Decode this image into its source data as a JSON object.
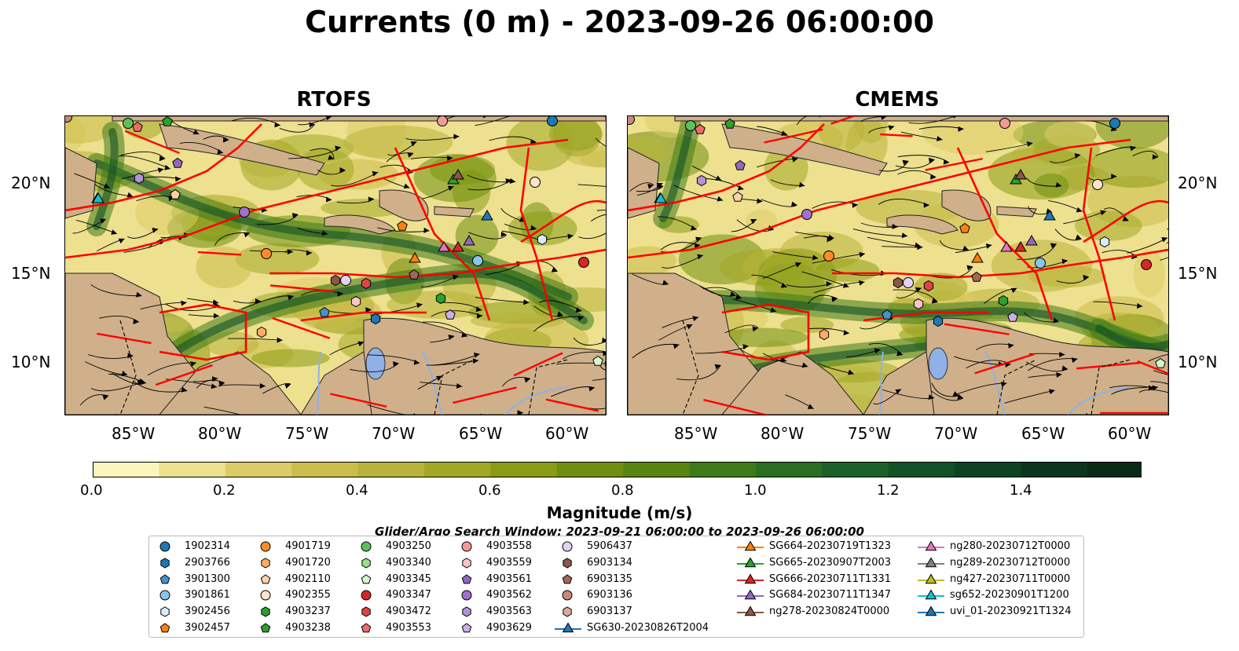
{
  "title": "Currents (0 m) - 2023-09-26 06:00:00",
  "panels": [
    {
      "title": "RTOFS"
    },
    {
      "title": "CMEMS"
    }
  ],
  "axes": {
    "lat_ticks": [
      "20°N",
      "15°N",
      "10°N"
    ],
    "lon_ticks": [
      "85°W",
      "80°W",
      "75°W",
      "70°W",
      "65°W",
      "60°W"
    ]
  },
  "colorbar": {
    "label": "Magnitude (m/s)",
    "ticks": [
      "0.0",
      "0.2",
      "0.4",
      "0.6",
      "0.8",
      "1.0",
      "1.2",
      "1.4"
    ],
    "colors": [
      "#fbf5bd",
      "#ede08f",
      "#dccc67",
      "#cbbd4a",
      "#b8b33a",
      "#a2a826",
      "#8a9c14",
      "#6f8f10",
      "#588512",
      "#3f7a18",
      "#2a6e21",
      "#1b6028",
      "#115228",
      "#0d4322",
      "#0b351c",
      "#0a2a16"
    ]
  },
  "legend": {
    "search_window": "Glider/Argo Search Window: 2023-09-21 06:00:00 to 2023-09-26 06:00:00",
    "argo": [
      {
        "id": "1902314",
        "marker": "circle",
        "color": "#1f77b4"
      },
      {
        "id": "2903766",
        "marker": "hexagon",
        "color": "#1f77b4"
      },
      {
        "id": "3901300",
        "marker": "pentagon",
        "color": "#4a90c8"
      },
      {
        "id": "3901861",
        "marker": "circle",
        "color": "#8cc4ec"
      },
      {
        "id": "3902456",
        "marker": "hexagon",
        "color": "#d7ecfa"
      },
      {
        "id": "3902457",
        "marker": "pentagon",
        "color": "#ff7f0e"
      },
      {
        "id": "4901719",
        "marker": "circle",
        "color": "#ff8c2a"
      },
      {
        "id": "4901720",
        "marker": "hexagon",
        "color": "#ffad66"
      },
      {
        "id": "4902110",
        "marker": "pentagon",
        "color": "#ffd2a6"
      },
      {
        "id": "4902355",
        "marker": "circle",
        "color": "#ffe4c8"
      },
      {
        "id": "4903237",
        "marker": "hexagon",
        "color": "#2ca02c"
      },
      {
        "id": "4903238",
        "marker": "pentagon",
        "color": "#2ca02c"
      },
      {
        "id": "4903250",
        "marker": "circle",
        "color": "#5cc05c"
      },
      {
        "id": "4903340",
        "marker": "hexagon",
        "color": "#98df8a"
      },
      {
        "id": "4903345",
        "marker": "pentagon",
        "color": "#d6f5cc"
      },
      {
        "id": "4903347",
        "marker": "circle",
        "color": "#d62728"
      },
      {
        "id": "4903472",
        "marker": "hexagon",
        "color": "#e04444"
      },
      {
        "id": "4903553",
        "marker": "pentagon",
        "color": "#ee6b6b"
      },
      {
        "id": "4903558",
        "marker": "circle",
        "color": "#f29a9a"
      },
      {
        "id": "4903559",
        "marker": "hexagon",
        "color": "#fbc6c6"
      },
      {
        "id": "4903561",
        "marker": "pentagon",
        "color": "#9467bd"
      },
      {
        "id": "4903562",
        "marker": "circle",
        "color": "#9f70cc"
      },
      {
        "id": "4903563",
        "marker": "hexagon",
        "color": "#b592d8"
      },
      {
        "id": "4903629",
        "marker": "pentagon",
        "color": "#c9b0e6"
      },
      {
        "id": "5906437",
        "marker": "circle",
        "color": "#e2d2f4"
      },
      {
        "id": "6903134",
        "marker": "hexagon",
        "color": "#8c564b"
      },
      {
        "id": "6903135",
        "marker": "pentagon",
        "color": "#a0685a"
      },
      {
        "id": "6903136",
        "marker": "circle",
        "color": "#c48a7a"
      },
      {
        "id": "6903137",
        "marker": "hexagon",
        "color": "#dca89a"
      }
    ],
    "gliders": [
      {
        "id": "SG630-20230826T2004",
        "color": "#1f77b4"
      },
      {
        "id": "SG664-20230719T1323",
        "color": "#ff7f0e"
      },
      {
        "id": "SG665-20230907T2003",
        "color": "#2ca02c"
      },
      {
        "id": "SG666-20230711T1331",
        "color": "#d62728"
      },
      {
        "id": "SG684-20230711T1347",
        "color": "#9467bd"
      },
      {
        "id": "ng278-20230824T0000",
        "color": "#8c564b"
      },
      {
        "id": "ng280-20230712T0000",
        "color": "#e377c2"
      },
      {
        "id": "ng289-20230712T0000",
        "color": "#7f7f7f"
      },
      {
        "id": "ng427-20230711T0000",
        "color": "#bcbd22"
      },
      {
        "id": "sg652-20230901T1200",
        "color": "#17becf"
      },
      {
        "id": "uvi_01-20230921T1324",
        "color": "#1f77b4"
      }
    ]
  }
}
